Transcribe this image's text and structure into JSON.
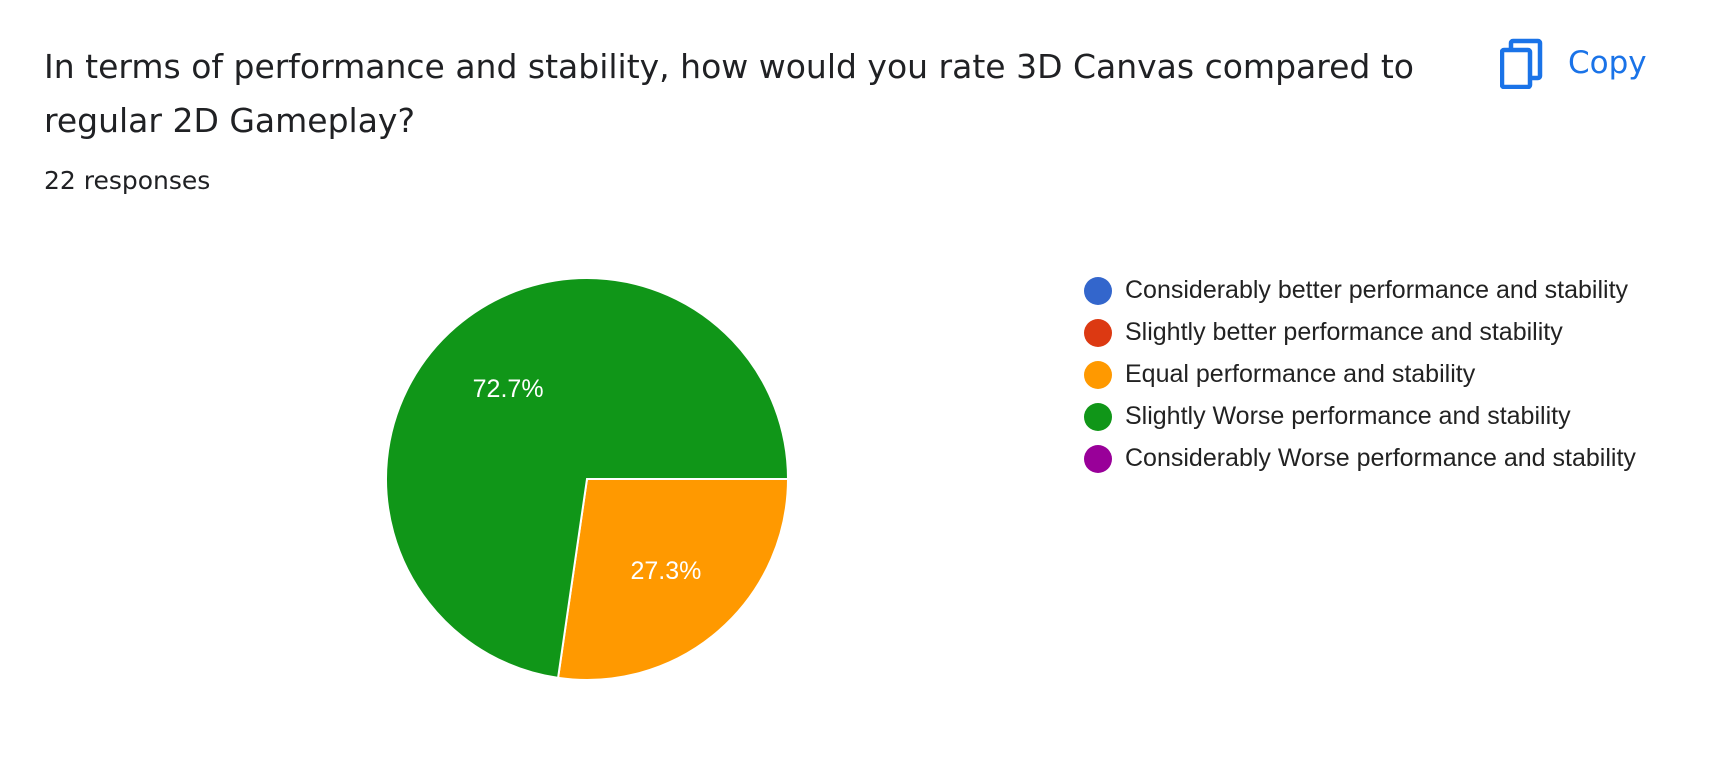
{
  "question": {
    "title": "In terms of performance and stability, how would you rate 3D Canvas compared to regular 2D Gameplay?",
    "responses": "22 responses"
  },
  "toolbar": {
    "copy_label": "Copy",
    "copy_icon": "copy-icon",
    "accent_color": "#1a73e8"
  },
  "chart_data": {
    "type": "pie",
    "title": "",
    "legend_position": "right",
    "slices": [
      {
        "label": "Considerably better performance and stability",
        "value": 0,
        "percent_label": "",
        "color": "#3366cc"
      },
      {
        "label": "Slightly better performance and stability",
        "value": 0,
        "percent_label": "",
        "color": "#dc3912"
      },
      {
        "label": "Equal performance and stability",
        "value": 27.3,
        "percent_label": "27.3%",
        "color": "#ff9900"
      },
      {
        "label": "Slightly Worse performance and stability",
        "value": 72.7,
        "percent_label": "72.7%",
        "color": "#109618"
      },
      {
        "label": "Considerably Worse performance and stability",
        "value": 0,
        "percent_label": "",
        "color": "#990099"
      }
    ]
  }
}
